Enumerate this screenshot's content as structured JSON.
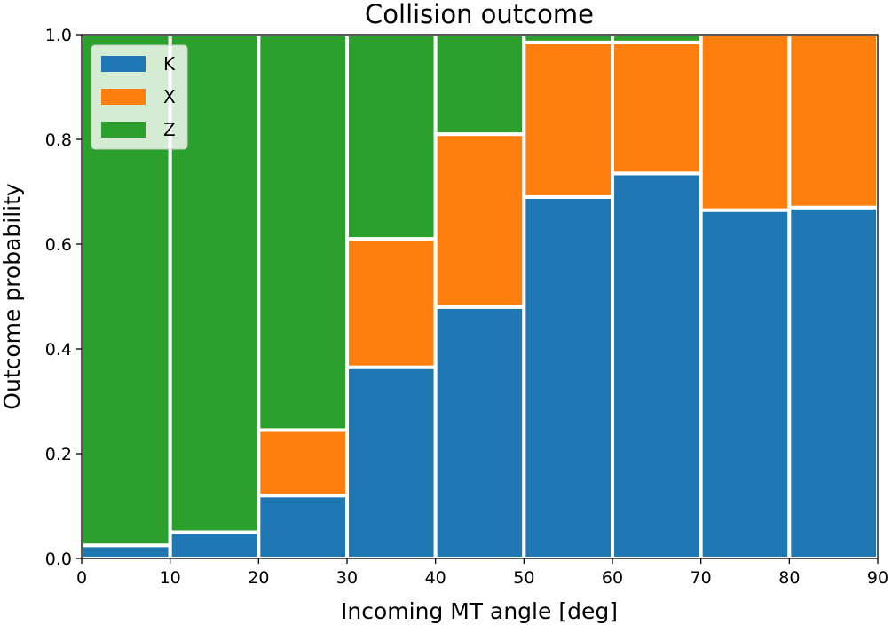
{
  "chart_data": {
    "type": "bar",
    "stacked": true,
    "title": "Collision outcome",
    "xlabel": "Incoming MT angle [deg]",
    "ylabel": "Outcome probability",
    "xlim": [
      0,
      90
    ],
    "ylim": [
      0,
      1.0
    ],
    "x_bins": [
      [
        0,
        10
      ],
      [
        10,
        20
      ],
      [
        20,
        30
      ],
      [
        30,
        40
      ],
      [
        40,
        50
      ],
      [
        50,
        60
      ],
      [
        60,
        70
      ],
      [
        70,
        80
      ],
      [
        80,
        90
      ]
    ],
    "xticks": [
      "0",
      "10",
      "20",
      "30",
      "40",
      "50",
      "60",
      "70",
      "80",
      "90"
    ],
    "yticks": [
      "0.0",
      "0.2",
      "0.4",
      "0.6",
      "0.8",
      "1.0"
    ],
    "series": [
      {
        "name": "K",
        "color": "#1f77b4",
        "values": [
          0.025,
          0.05,
          0.12,
          0.365,
          0.48,
          0.69,
          0.735,
          0.665,
          0.67
        ]
      },
      {
        "name": "X",
        "color": "#ff7f0e",
        "values": [
          0.0,
          0.0,
          0.125,
          0.245,
          0.33,
          0.295,
          0.25,
          0.335,
          0.33
        ]
      },
      {
        "name": "Z",
        "color": "#2ca02c",
        "values": [
          0.975,
          0.95,
          0.755,
          0.39,
          0.19,
          0.015,
          0.015,
          0.0,
          0.0
        ]
      }
    ],
    "legend": {
      "position": "top-left"
    },
    "grid": false
  }
}
